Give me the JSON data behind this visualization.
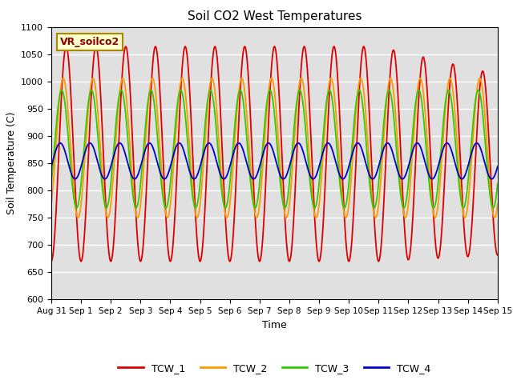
{
  "title": "Soil CO2 West Temperatures",
  "xlabel": "Time",
  "ylabel": "Soil Temperature (C)",
  "ylim": [
    600,
    1100
  ],
  "xlim_days": [
    0,
    15
  ],
  "annotation": "VR_soilco2",
  "plot_bg_color": "#e0e0e0",
  "fig_bg_color": "#ffffff",
  "x_tick_labels": [
    "Aug 31",
    "Sep 1",
    "Sep 2",
    "Sep 3",
    "Sep 4",
    "Sep 5",
    "Sep 6",
    "Sep 7",
    "Sep 8",
    "Sep 9",
    "Sep 10",
    "Sep 11",
    "Sep 12",
    "Sep 13",
    "Sep 14",
    "Sep 15"
  ],
  "x_tick_positions": [
    0,
    1,
    2,
    3,
    4,
    5,
    6,
    7,
    8,
    9,
    10,
    11,
    12,
    13,
    14,
    15
  ],
  "y_ticks": [
    600,
    650,
    700,
    750,
    800,
    850,
    900,
    950,
    1000,
    1050,
    1100
  ],
  "legend_entries": [
    "TCW_1",
    "TCW_2",
    "TCW_3",
    "TCW_4"
  ],
  "legend_colors": [
    "#dd0000",
    "#ff9900",
    "#33cc00",
    "#0000cc"
  ],
  "TCW1_color": "#dd0000",
  "TCW2_color": "#ff9900",
  "TCW3_color": "#33cc00",
  "TCW4_color": "#0000cc",
  "TCW1_mean": 867,
  "TCW1_amp": 197,
  "TCW1_phase": -1.5708,
  "TCW2_mean": 878,
  "TCW2_amp": 128,
  "TCW2_phase": -0.942,
  "TCW3_mean": 876,
  "TCW3_amp": 108,
  "TCW3_phase": -0.628,
  "TCW4_mean": 854,
  "TCW4_amp": 33,
  "TCW4_phase": -0.314
}
